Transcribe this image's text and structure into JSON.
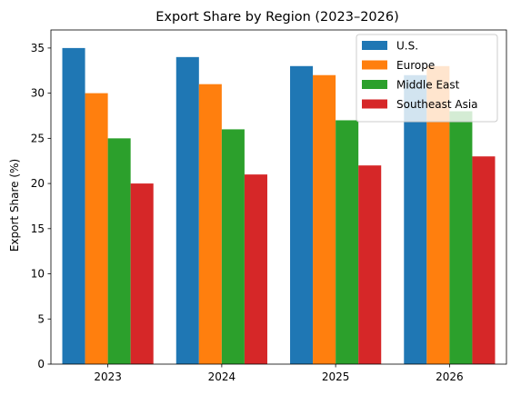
{
  "chart_data": {
    "type": "bar",
    "title": "Export Share by Region (2023–2026)",
    "xlabel": "",
    "ylabel": "Export Share (%)",
    "categories": [
      "2023",
      "2024",
      "2025",
      "2026"
    ],
    "ylim": [
      0,
      37
    ],
    "yticks": [
      0,
      5,
      10,
      15,
      20,
      25,
      30,
      35
    ],
    "grid": false,
    "legend_position": "top-right",
    "series": [
      {
        "name": "U.S.",
        "color": "#1f77b4",
        "values": [
          35,
          34,
          33,
          32
        ]
      },
      {
        "name": "Europe",
        "color": "#ff7f0e",
        "values": [
          30,
          31,
          32,
          33
        ]
      },
      {
        "name": "Middle East",
        "color": "#2ca02c",
        "values": [
          25,
          26,
          27,
          28
        ]
      },
      {
        "name": "Southeast Asia",
        "color": "#d62728",
        "values": [
          20,
          21,
          22,
          23
        ]
      }
    ]
  }
}
